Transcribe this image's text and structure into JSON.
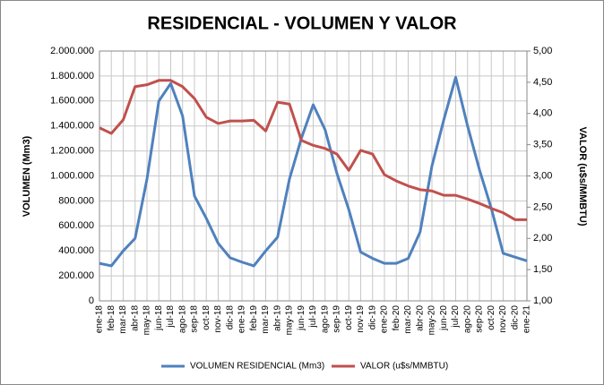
{
  "chart_data": {
    "type": "line",
    "title": "RESIDENCIAL - VOLUMEN Y VALOR",
    "y_label": "VOLUMEN (Mm3)",
    "y2_label": "VALOR (u$s/MMBTU)",
    "categories": [
      "ene-18",
      "feb-18",
      "mar-18",
      "abr-18",
      "may-18",
      "jun-18",
      "jul-18",
      "ago-18",
      "sep-18",
      "oct-18",
      "nov-18",
      "dic-18",
      "ene-19",
      "feb-19",
      "mar-19",
      "abr-19",
      "may-19",
      "jun-19",
      "jul-19",
      "ago-19",
      "sep-19",
      "oct-19",
      "nov-19",
      "dic-19",
      "ene-20",
      "feb-20",
      "mar-20",
      "abr-20",
      "may-20",
      "jun-20",
      "jul-20",
      "ago-20",
      "sep-20",
      "oct-20",
      "nov-20",
      "dic-20",
      "ene-21"
    ],
    "series": [
      {
        "name": "VOLUMEN RESIDENCIAL (Mm3)",
        "color": "#4f81bd",
        "axis": "y",
        "values": [
          300000,
          280000,
          400000,
          500000,
          975000,
          1600000,
          1740000,
          1480000,
          840000,
          660000,
          460000,
          345000,
          310000,
          280000,
          400000,
          510000,
          975000,
          1300000,
          1570000,
          1370000,
          1020000,
          730000,
          390000,
          340000,
          300000,
          300000,
          340000,
          550000,
          1080000,
          1450000,
          1790000,
          1400000,
          1050000,
          740000,
          380000,
          350000,
          320000
        ]
      },
      {
        "name": "VALOR (u$s/MMBTU)",
        "color": "#c0504d",
        "axis": "y2",
        "values": [
          3.77,
          3.68,
          3.9,
          4.43,
          4.46,
          4.53,
          4.53,
          4.43,
          4.24,
          3.94,
          3.84,
          3.88,
          3.88,
          3.89,
          3.72,
          4.18,
          4.15,
          3.57,
          3.49,
          3.44,
          3.35,
          3.09,
          3.41,
          3.35,
          3.02,
          2.92,
          2.84,
          2.78,
          2.76,
          2.69,
          2.69,
          2.63,
          2.56,
          2.48,
          2.41,
          2.3,
          2.3
        ]
      }
    ],
    "ylim": [
      0,
      2000000
    ],
    "yticks": [
      0,
      {
        "value": 200000,
        "label": "200.000"
      },
      {
        "value": 400000,
        "label": "400.000"
      },
      {
        "value": 600000,
        "label": "600.000"
      },
      {
        "value": 800000,
        "label": "800.000"
      },
      {
        "value": 1000000,
        "label": "1.000.000"
      },
      {
        "value": 1200000,
        "label": "1.200.000"
      },
      {
        "value": 1400000,
        "label": "1.400.000"
      },
      {
        "value": 1600000,
        "label": "1.600.000"
      },
      {
        "value": 1800000,
        "label": "1.800.000"
      },
      {
        "value": 2000000,
        "label": "2.000.000"
      }
    ],
    "y2lim": [
      1,
      5
    ],
    "y2ticks": [
      {
        "value": 1,
        "label": "1,00"
      },
      {
        "value": 1.5,
        "label": "1,50"
      },
      {
        "value": 2,
        "label": "2,00"
      },
      {
        "value": 2.5,
        "label": "2,50"
      },
      {
        "value": 3,
        "label": "3,00"
      },
      {
        "value": 3.5,
        "label": "3,50"
      },
      {
        "value": 4,
        "label": "4,00"
      },
      {
        "value": 4.5,
        "label": "4,50"
      },
      {
        "value": 5,
        "label": "5,00"
      }
    ],
    "grid": true,
    "legend": "bottom"
  }
}
